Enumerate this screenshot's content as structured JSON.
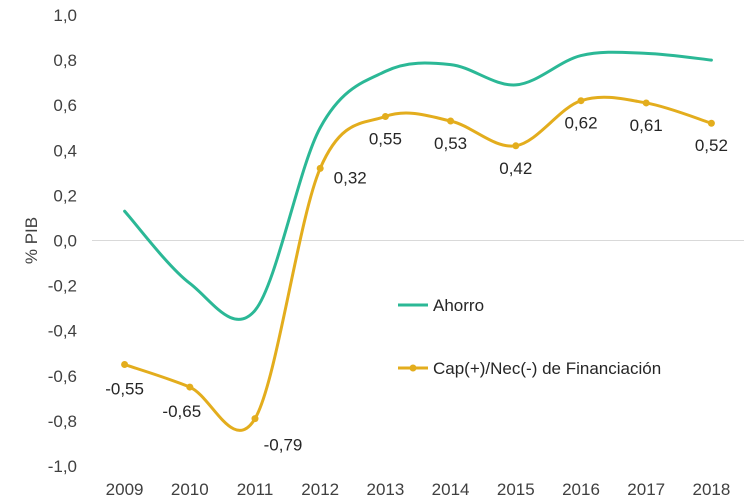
{
  "chart_data": {
    "type": "line",
    "ylabel": "% PIB",
    "xlabel": "",
    "ylim": [
      -1.0,
      1.0
    ],
    "ytick_labels": [
      "1,0",
      "0,8",
      "0,6",
      "0,4",
      "0,2",
      "0,0",
      "-0,2",
      "-0,4",
      "-0,6",
      "-0,8",
      "-1,0"
    ],
    "x": [
      "2009",
      "2010",
      "2011",
      "2012",
      "2013",
      "2014",
      "2015",
      "2016",
      "2017",
      "2018"
    ],
    "legend_position": "center-right",
    "series": [
      {
        "name": "Ahorro",
        "color": "#2bb896",
        "values": [
          0.13,
          -0.19,
          -0.31,
          0.5,
          0.75,
          0.78,
          0.69,
          0.82,
          0.83,
          0.8
        ],
        "data_labels": [
          "",
          "",
          "",
          "",
          "",
          "",
          "",
          "",
          "",
          ""
        ]
      },
      {
        "name": "Cap(+)/Nec(-) de Financiación",
        "color": "#e3ad1d",
        "values": [
          -0.55,
          -0.65,
          -0.79,
          0.32,
          0.55,
          0.53,
          0.42,
          0.62,
          0.61,
          0.52
        ],
        "data_labels": [
          "-0,55",
          "-0,65",
          "-0,79",
          "0,32",
          "0,55",
          "0,53",
          "0,42",
          "0,62",
          "0,61",
          "0,52"
        ]
      }
    ]
  }
}
